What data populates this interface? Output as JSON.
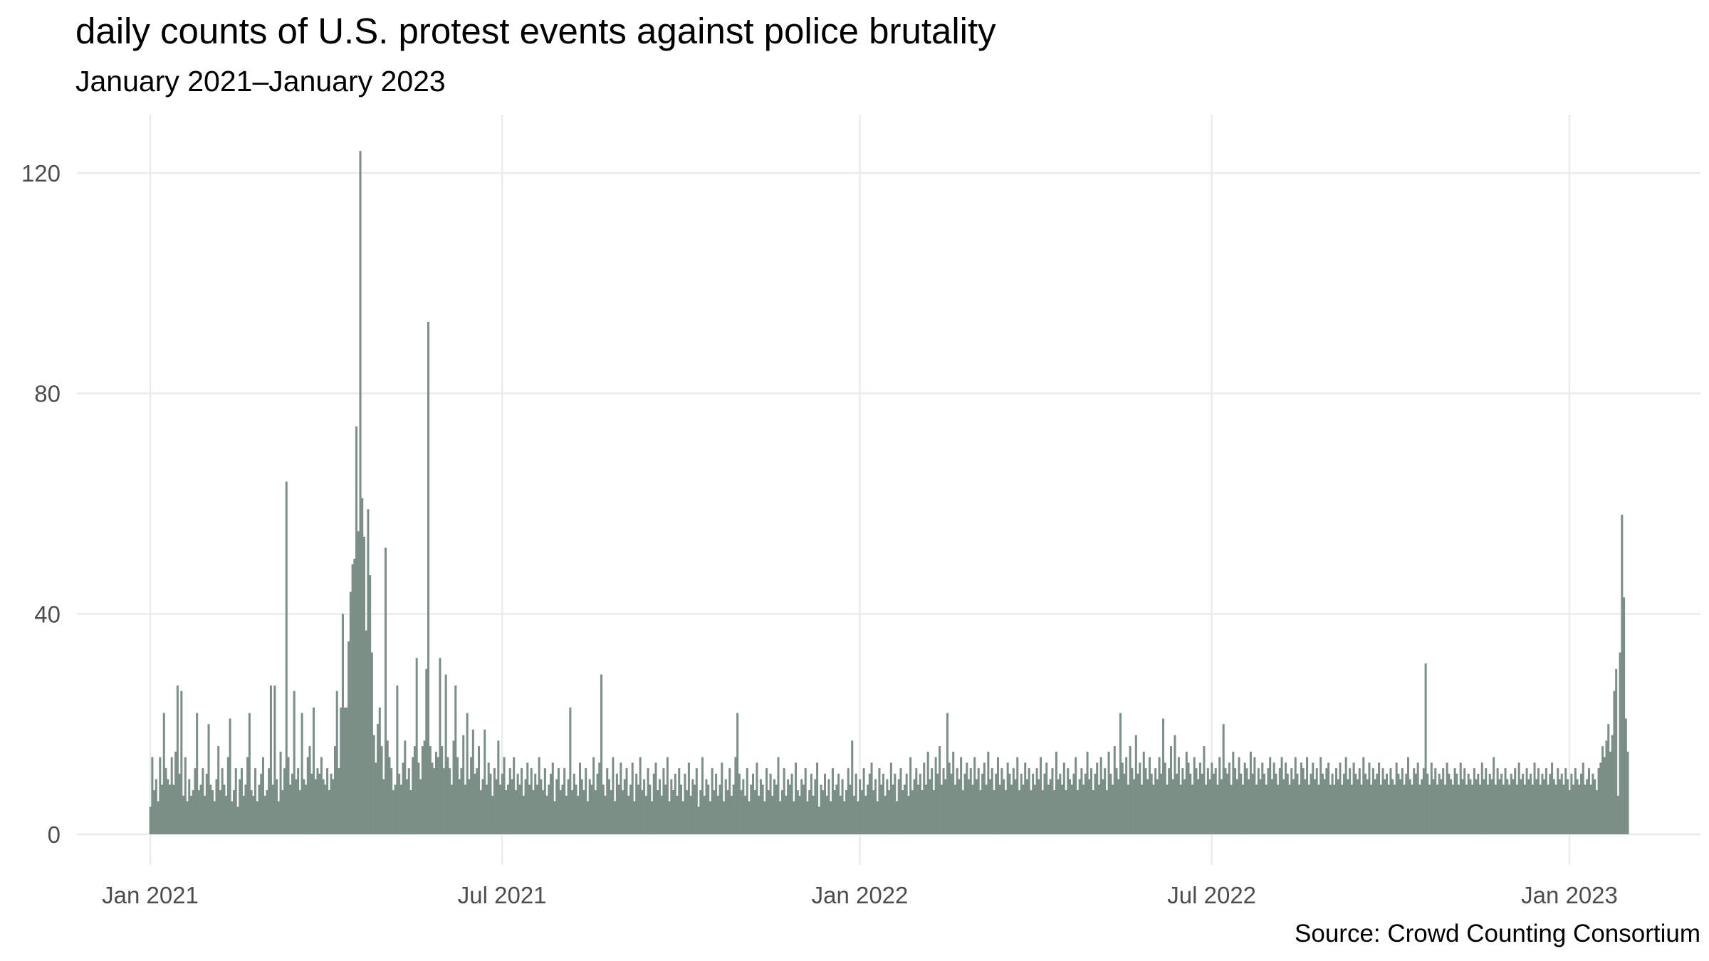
{
  "chart_data": {
    "type": "bar",
    "title": "daily counts of U.S. protest events against police brutality",
    "subtitle": "January 2021–January 2023",
    "caption": "Source: Crowd Counting Consortium",
    "xlabel": "",
    "ylabel": "",
    "ylim": [
      0,
      125
    ],
    "grid": true,
    "bar_color": "#7b8f87",
    "grid_color": "#ebebeb",
    "start_date": "2021-01-01",
    "yticks": [
      {
        "value": 0,
        "label": "0"
      },
      {
        "value": 40,
        "label": "40"
      },
      {
        "value": 80,
        "label": "80"
      },
      {
        "value": 120,
        "label": "120"
      }
    ],
    "xticks": [
      {
        "date": "2021-01-01",
        "label": "Jan 2021"
      },
      {
        "date": "2021-07-01",
        "label": "Jul 2021"
      },
      {
        "date": "2022-01-01",
        "label": "Jan 2022"
      },
      {
        "date": "2022-07-01",
        "label": "Jul 2022"
      },
      {
        "date": "2023-01-01",
        "label": "Jan 2023"
      }
    ],
    "values": [
      5,
      14,
      8,
      10,
      6,
      14,
      9,
      22,
      12,
      10,
      9,
      14,
      9,
      15,
      27,
      11,
      26,
      7,
      14,
      6,
      10,
      7,
      8,
      12,
      22,
      8,
      9,
      12,
      7,
      11,
      20,
      9,
      8,
      6,
      10,
      16,
      8,
      12,
      9,
      7,
      14,
      21,
      6,
      8,
      12,
      5,
      10,
      12,
      7,
      9,
      14,
      22,
      8,
      7,
      12,
      6,
      9,
      11,
      14,
      7,
      8,
      12,
      27,
      9,
      27,
      10,
      6,
      15,
      8,
      12,
      64,
      14,
      9,
      11,
      26,
      10,
      12,
      8,
      22,
      10,
      9,
      14,
      16,
      11,
      23,
      10,
      12,
      11,
      14,
      10,
      9,
      12,
      8,
      11,
      10,
      16,
      26,
      12,
      23,
      40,
      23,
      23,
      35,
      44,
      49,
      50,
      74,
      55,
      124,
      61,
      54,
      37,
      59,
      47,
      33,
      18,
      13,
      20,
      23,
      16,
      10,
      52,
      17,
      14,
      12,
      8,
      9,
      27,
      11,
      9,
      13,
      17,
      10,
      12,
      8,
      14,
      16,
      32,
      13,
      10,
      16,
      17,
      30,
      93,
      16,
      13,
      12,
      15,
      14,
      32,
      16,
      12,
      29,
      14,
      12,
      9,
      17,
      27,
      14,
      10,
      12,
      18,
      9,
      22,
      10,
      14,
      19,
      11,
      12,
      16,
      8,
      10,
      19,
      9,
      13,
      11,
      7,
      12,
      10,
      17,
      9,
      11,
      14,
      8,
      9,
      12,
      10,
      14,
      8,
      11,
      9,
      12,
      7,
      10,
      13,
      9,
      12,
      8,
      11,
      9,
      14,
      10,
      8,
      12,
      7,
      9,
      11,
      13,
      6,
      10,
      12,
      8,
      9,
      12,
      7,
      10,
      23,
      8,
      11,
      9,
      7,
      13,
      10,
      8,
      12,
      6,
      10,
      9,
      14,
      8,
      11,
      13,
      29,
      9,
      7,
      12,
      10,
      8,
      14,
      6,
      11,
      9,
      13,
      8,
      10,
      12,
      7,
      9,
      13,
      6,
      11,
      9,
      14,
      8,
      10,
      7,
      12,
      9,
      6,
      11,
      13,
      8,
      10,
      7,
      12,
      9,
      14,
      6,
      10,
      8,
      11,
      7,
      12,
      9,
      6,
      11,
      8,
      13,
      7,
      10,
      9,
      12,
      5,
      8,
      14,
      7,
      10,
      9,
      6,
      12,
      8,
      11,
      7,
      9,
      13,
      6,
      10,
      8,
      12,
      7,
      9,
      14,
      22,
      11,
      8,
      10,
      7,
      12,
      6,
      9,
      11,
      8,
      13,
      7,
      10,
      9,
      6,
      12,
      8,
      11,
      7,
      10,
      9,
      14,
      6,
      8,
      12,
      7,
      10,
      9,
      11,
      6,
      13,
      8,
      7,
      10,
      9,
      12,
      6,
      8,
      11,
      7,
      10,
      13,
      5,
      9,
      8,
      11,
      7,
      10,
      6,
      12,
      8,
      9,
      11,
      7,
      10,
      6,
      8,
      12,
      9,
      17,
      7,
      11,
      6,
      10,
      8,
      12,
      7,
      9,
      11,
      13,
      8,
      10,
      6,
      12,
      9,
      11,
      7,
      10,
      8,
      13,
      9,
      11,
      6,
      10,
      12,
      8,
      9,
      11,
      7,
      14,
      8,
      10,
      12,
      9,
      11,
      8,
      13,
      9,
      15,
      10,
      12,
      8,
      14,
      11,
      16,
      9,
      12,
      10,
      22,
      13,
      11,
      15,
      9,
      12,
      10,
      14,
      8,
      11,
      13,
      10,
      12,
      9,
      14,
      10,
      12,
      8,
      11,
      13,
      9,
      15,
      10,
      12,
      8,
      11,
      14,
      9,
      12,
      10,
      8,
      13,
      11,
      9,
      12,
      10,
      14,
      8,
      11,
      9,
      13,
      10,
      12,
      8,
      11,
      9,
      12,
      10,
      14,
      8,
      11,
      13,
      9,
      10,
      12,
      8,
      15,
      10,
      11,
      9,
      13,
      8,
      12,
      10,
      9,
      11,
      14,
      8,
      10,
      12,
      9,
      11,
      15,
      10,
      12,
      8,
      11,
      13,
      9,
      14,
      10,
      12,
      8,
      15,
      11,
      9,
      16,
      12,
      10,
      22,
      13,
      11,
      14,
      9,
      16,
      12,
      10,
      18,
      11,
      13,
      9,
      15,
      12,
      10,
      14,
      11,
      9,
      12,
      10,
      14,
      11,
      21,
      13,
      9,
      12,
      16,
      10,
      18,
      11,
      14,
      9,
      12,
      10,
      15,
      13,
      11,
      9,
      14,
      12,
      10,
      13,
      11,
      16,
      9,
      12,
      10,
      13,
      11,
      12,
      9,
      14,
      10,
      20,
      12,
      11,
      13,
      9,
      15,
      12,
      10,
      14,
      11,
      9,
      13,
      12,
      10,
      15,
      11,
      14,
      9,
      12,
      10,
      13,
      11,
      9,
      12,
      14,
      10,
      13,
      11,
      9,
      12,
      14,
      10,
      13,
      11,
      9,
      12,
      10,
      14,
      11,
      9,
      13,
      12,
      10,
      14,
      9,
      11,
      13,
      10,
      12,
      9,
      14,
      11,
      10,
      12,
      13,
      9,
      11,
      9,
      12,
      10,
      13,
      9,
      11,
      14,
      10,
      12,
      9,
      13,
      11,
      10,
      12,
      9,
      14,
      11,
      10,
      13,
      9,
      12,
      10,
      11,
      13,
      9,
      12,
      10,
      11,
      9,
      12,
      10,
      9,
      13,
      11,
      10,
      12,
      9,
      11,
      14,
      10,
      9,
      12,
      11,
      13,
      9,
      10,
      12,
      31,
      11,
      9,
      13,
      10,
      12,
      9,
      11,
      10,
      12,
      9,
      13,
      11,
      10,
      9,
      12,
      11,
      9,
      13,
      10,
      12,
      9,
      11,
      10,
      9,
      12,
      10,
      11,
      9,
      13,
      10,
      12,
      9,
      11,
      10,
      14,
      9,
      12,
      10,
      11,
      9,
      12,
      10,
      9,
      11,
      10,
      12,
      9,
      13,
      10,
      11,
      9,
      12,
      10,
      11,
      9,
      13,
      10,
      12,
      9,
      11,
      10,
      12,
      9,
      11,
      13,
      10,
      9,
      12,
      10,
      11,
      9,
      12,
      10,
      8,
      11,
      9,
      12,
      10,
      9,
      11,
      13,
      9,
      10,
      12,
      9,
      11,
      10,
      8,
      12,
      13,
      16,
      14,
      17,
      20,
      15,
      18,
      26,
      30,
      7,
      33,
      58,
      43,
      21,
      15
    ]
  }
}
